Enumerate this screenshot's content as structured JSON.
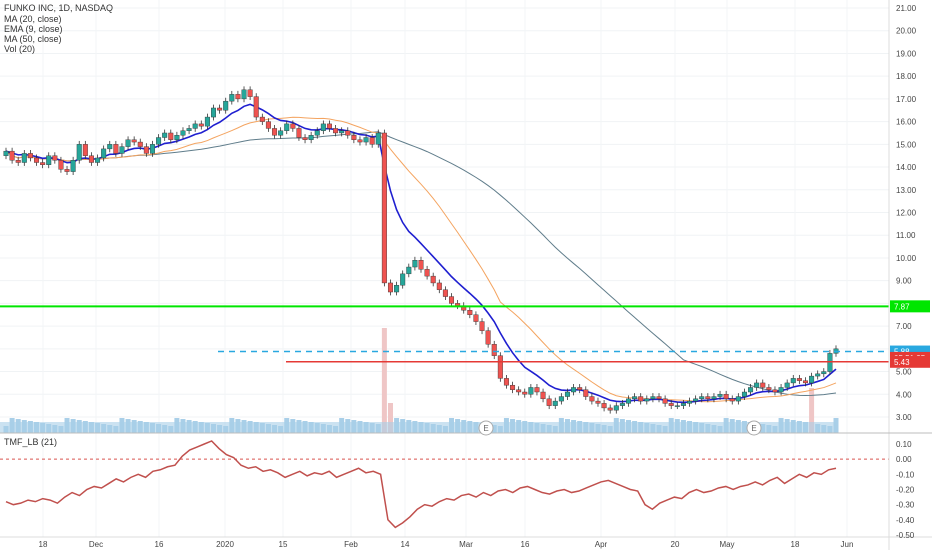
{
  "legend": {
    "title": "FUNKO INC, 1D, NASDAQ",
    "ma20": "MA (20, close)",
    "ema9": "EMA (9, close)",
    "ma50": "MA (50, close)",
    "vol": "Vol (20)"
  },
  "tmf_label": "TMF_LB (21)",
  "earnings_marker": "E",
  "colors": {
    "up": "#26a69a",
    "down": "#ef5350",
    "ema9": "#1f1fd0",
    "ma20": "#f4a460",
    "ma50": "#607d8b",
    "green_line": "#00e600",
    "red_line": "#e53935",
    "blue_dash": "#29a8e0",
    "volume": "#a9cfe8",
    "volume_down": "#efc6c6",
    "tmf": "#c0504d",
    "zero_line": "#d9534f"
  },
  "chart_data": [
    {
      "type": "candlestick",
      "title": "FUNKO INC, 1D, NASDAQ",
      "ylim": [
        2.6,
        21.4
      ],
      "y_ticks": [
        "21.00",
        "20.00",
        "19.00",
        "18.00",
        "17.00",
        "16.00",
        "15.00",
        "14.00",
        "13.00",
        "12.00",
        "11.00",
        "10.00",
        "9.00",
        "8.00",
        "7.00",
        "6.00",
        "5.00",
        "4.00",
        "3.00"
      ],
      "x_labels": [
        "18",
        "Dec",
        "16",
        "2020",
        "15",
        "Feb",
        "14",
        "Mar",
        "16",
        "Apr",
        "20",
        "May",
        "18",
        "Jun"
      ],
      "price_tags": [
        {
          "value": "7.87",
          "color": "#00e600",
          "level": 7.87
        },
        {
          "value": "5.88",
          "color": "#29a8e0",
          "level": 5.88
        },
        {
          "value": "05:51:25",
          "color": "#e53935",
          "level": 5.6
        },
        {
          "value": "5.43",
          "color": "#e53935",
          "level": 5.43
        }
      ],
      "levels": {
        "green": 7.87,
        "blue_dashed": 5.88,
        "red": 5.43
      },
      "closes": [
        14.7,
        14.3,
        14.2,
        14.6,
        14.4,
        14.2,
        14.1,
        14.5,
        14.3,
        13.9,
        13.8,
        14.3,
        15.0,
        14.5,
        14.2,
        14.4,
        14.8,
        15.0,
        14.6,
        14.9,
        15.2,
        15.1,
        14.9,
        14.6,
        15.0,
        15.3,
        15.5,
        15.2,
        15.4,
        15.6,
        15.7,
        15.9,
        15.8,
        16.2,
        16.6,
        16.5,
        16.9,
        17.2,
        17.0,
        17.4,
        17.1,
        16.2,
        16.0,
        15.7,
        15.4,
        15.6,
        15.9,
        15.7,
        15.3,
        15.2,
        15.4,
        15.6,
        15.9,
        15.7,
        15.5,
        15.6,
        15.4,
        15.2,
        15.1,
        15.3,
        15.0,
        15.5,
        8.9,
        8.5,
        8.8,
        9.3,
        9.6,
        9.9,
        9.5,
        9.2,
        8.9,
        8.6,
        8.3,
        8.0,
        7.9,
        7.7,
        7.5,
        7.2,
        6.8,
        6.2,
        5.7,
        4.7,
        4.4,
        4.2,
        4.1,
        4.0,
        4.3,
        4.1,
        3.8,
        3.5,
        3.7,
        3.9,
        4.1,
        4.3,
        4.2,
        3.9,
        3.7,
        3.6,
        3.4,
        3.3,
        3.5,
        3.6,
        3.8,
        3.9,
        3.7,
        3.8,
        3.9,
        3.8,
        3.6,
        3.5,
        3.5,
        3.6,
        3.7,
        3.8,
        3.9,
        3.8,
        3.9,
        4.0,
        3.8,
        3.7,
        3.9,
        4.1,
        4.3,
        4.5,
        4.3,
        4.2,
        4.1,
        4.3,
        4.5,
        4.7,
        4.6,
        4.5,
        4.8,
        4.9,
        5.0,
        5.8,
        6.0
      ]
    },
    {
      "type": "line",
      "title": "TMF_LB (21)",
      "ylim": [
        -0.5,
        0.15
      ],
      "y_ticks": [
        "0.10",
        "0.00",
        "-0.10",
        "-0.20",
        "-0.30",
        "-0.40",
        "-0.50"
      ],
      "zero_line": 0.0,
      "values": [
        -0.28,
        -0.3,
        -0.29,
        -0.27,
        -0.28,
        -0.26,
        -0.27,
        -0.29,
        -0.25,
        -0.22,
        -0.24,
        -0.2,
        -0.18,
        -0.19,
        -0.16,
        -0.13,
        -0.15,
        -0.12,
        -0.1,
        -0.12,
        -0.08,
        -0.07,
        -0.05,
        -0.04,
        0.02,
        0.06,
        0.08,
        0.1,
        0.12,
        0.07,
        0.03,
        0.01,
        -0.04,
        -0.06,
        -0.05,
        -0.08,
        -0.07,
        -0.09,
        -0.12,
        -0.1,
        -0.08,
        -0.11,
        -0.09,
        -0.1,
        -0.08,
        -0.12,
        -0.1,
        -0.08,
        -0.06,
        -0.09,
        -0.08,
        -0.1,
        -0.4,
        -0.45,
        -0.42,
        -0.38,
        -0.33,
        -0.3,
        -0.31,
        -0.28,
        -0.26,
        -0.27,
        -0.24,
        -0.23,
        -0.25,
        -0.22,
        -0.24,
        -0.21,
        -0.2,
        -0.22,
        -0.19,
        -0.18,
        -0.2,
        -0.22,
        -0.23,
        -0.21,
        -0.2,
        -0.22,
        -0.21,
        -0.19,
        -0.17,
        -0.15,
        -0.14,
        -0.16,
        -0.18,
        -0.2,
        -0.21,
        -0.3,
        -0.33,
        -0.29,
        -0.27,
        -0.25,
        -0.26,
        -0.22,
        -0.2,
        -0.22,
        -0.21,
        -0.19,
        -0.18,
        -0.2,
        -0.18,
        -0.17,
        -0.15,
        -0.17,
        -0.14,
        -0.12,
        -0.16,
        -0.13,
        -0.1,
        -0.12,
        -0.09,
        -0.1,
        -0.07,
        -0.06
      ]
    }
  ]
}
